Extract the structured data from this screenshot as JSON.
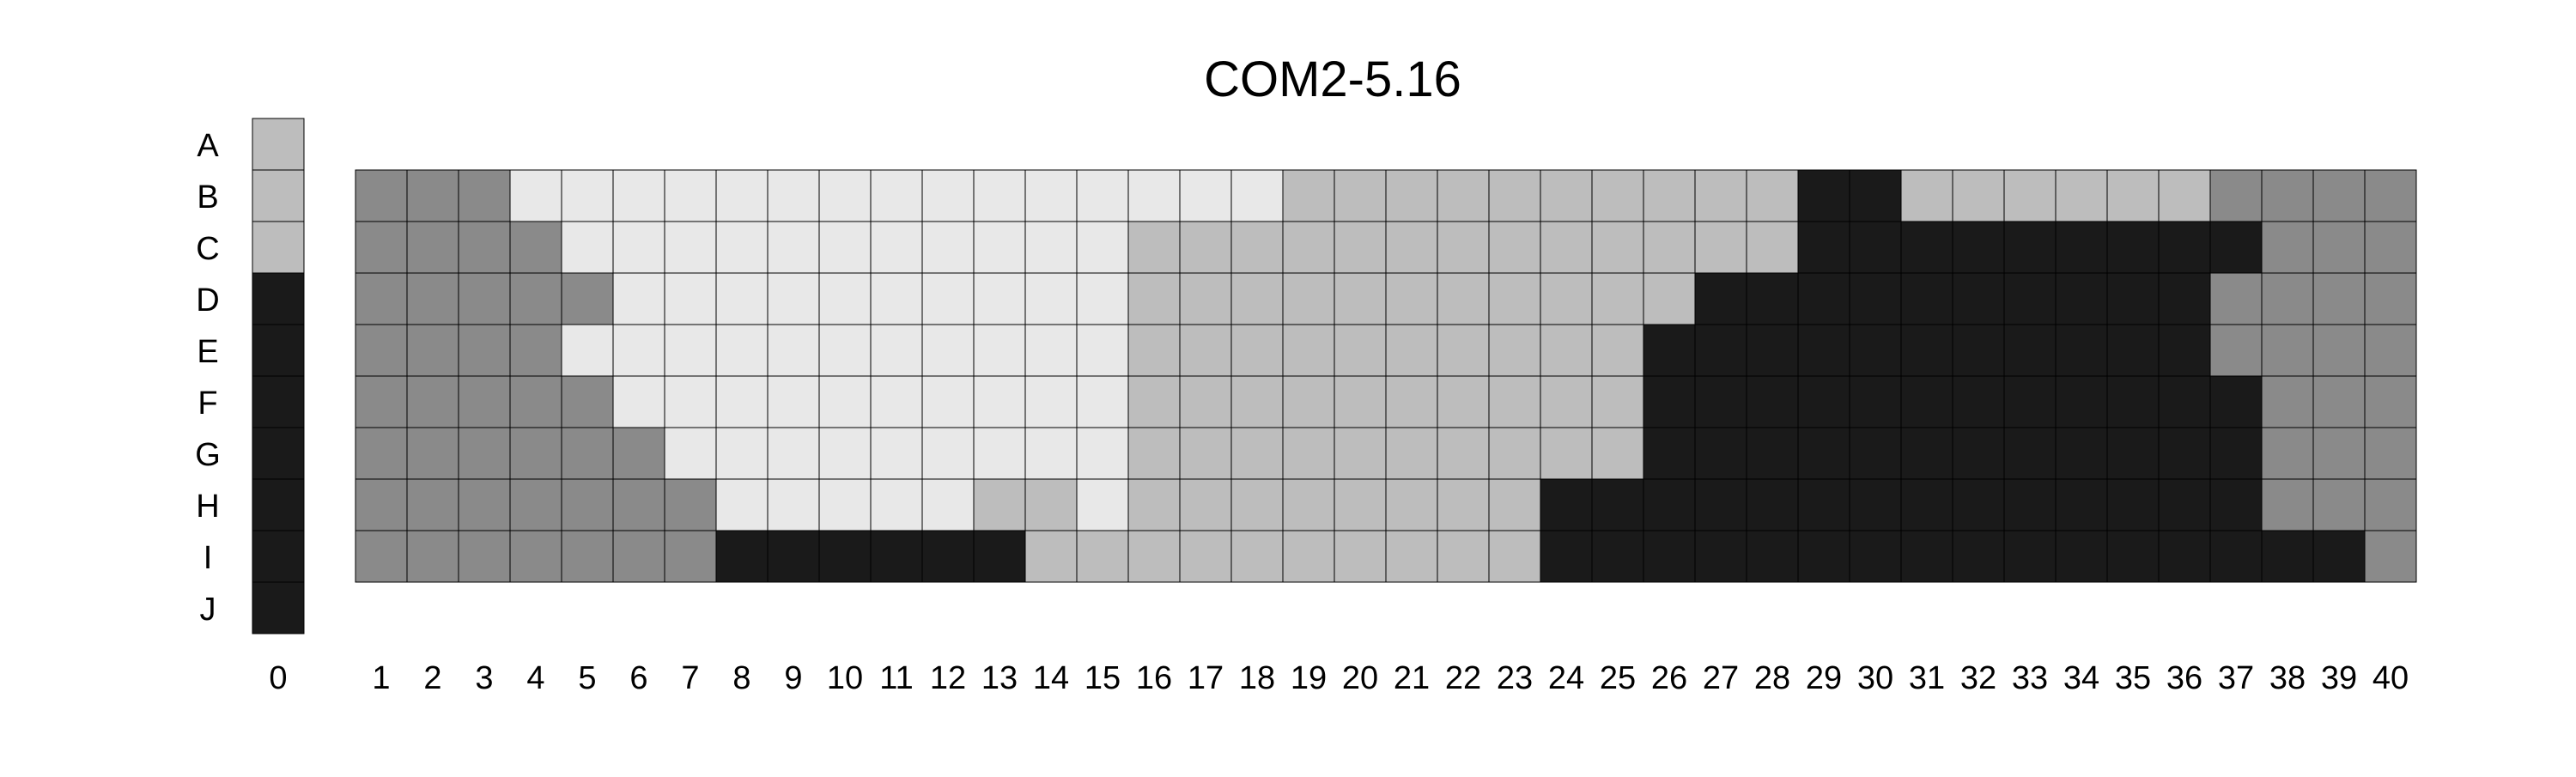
{
  "chart_data": {
    "type": "heatmap",
    "title": "COM2-5.16",
    "rows": [
      "A",
      "B",
      "C",
      "D",
      "E",
      "F",
      "G",
      "H",
      "I",
      "J"
    ],
    "key_column": {
      "label": "0",
      "values": [
        "S",
        "S",
        "S",
        "K",
        "K",
        "K",
        "K",
        "K",
        "K",
        "K"
      ]
    },
    "grid_rows": [
      "B",
      "C",
      "D",
      "E",
      "F",
      "G",
      "H",
      "I"
    ],
    "columns": [
      "1",
      "2",
      "3",
      "4",
      "5",
      "6",
      "7",
      "8",
      "9",
      "10",
      "11",
      "12",
      "13",
      "14",
      "15",
      "16",
      "17",
      "18",
      "19",
      "20",
      "21",
      "22",
      "23",
      "24",
      "25",
      "26",
      "27",
      "28",
      "29",
      "30",
      "31",
      "32",
      "33",
      "34",
      "35",
      "36",
      "37",
      "38",
      "39",
      "40"
    ],
    "grid": [
      "DDDLLLLLLLLLLLLLLLSSSSSSSSSSKKSSSSSSDDDD",
      "DDDDLLLLLLLLLLLSSSSSSSSSSSSSKKKKKKKKKDDD",
      "DDDDDLLLLLLLLLLSSSSSSSSSSSKKKKKKKKKKDDDD",
      "DDDDLLLLLLLLLLLSSSSSSSSSSKKKKKKKKKKKDDDD",
      "DDDDDLLLLLLLLLLSSSSSSSSSSKKKKKKKKKKKKDDD",
      "DDDDDDLLLLLLLLLSSSSSSSSSSKKKKKKKKKKKKDDD",
      "DDDDDDDLLLLLSSLSSSSSSSSKKKKKKKKKKKKKKDDD",
      "DDDDDDDKKKKKKSSSSSSSSSSKKKKKKKKKKKKKKKKD"
    ],
    "colors": {
      "L": "#e8e8e8",
      "S": "#bdbdbd",
      "D": "#8a8a8a",
      "K": "#1a1a1a"
    },
    "grid_lines": true,
    "legend": "none"
  }
}
